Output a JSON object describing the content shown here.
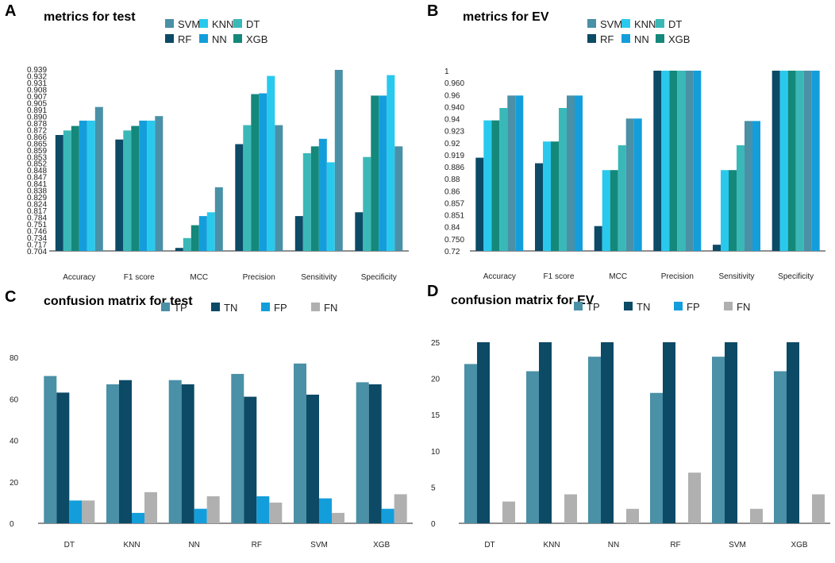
{
  "colors": {
    "SVM": "#4a90a6",
    "RF": "#0c4a66",
    "KNN": "#29c9ee",
    "NN": "#139edb",
    "DT": "#3ab8b8",
    "XGB": "#14887a",
    "TP": "#4a90a6",
    "TN": "#0c4a66",
    "FP": "#139edb",
    "FN": "#b0b0b0"
  },
  "chart_data": [
    {
      "type": "bar",
      "panel": "A",
      "title": "metrics for test",
      "categories": [
        "Accuracy",
        "F1 score",
        "MCC",
        "Precision",
        "Sensitivity",
        "Specificity"
      ],
      "legend": [
        "SVM",
        "KNN",
        "DT",
        "RF",
        "NN",
        "XGB"
      ],
      "ytick_labels": [
        "0.939",
        "0.932",
        "0.931",
        "0.908",
        "0.907",
        "0.905",
        "0.891",
        "0.890",
        "0.878",
        "0.872",
        "0.866",
        "0.865",
        "0.859",
        "0.853",
        "0.852",
        "0.848",
        "0.847",
        "0.841",
        "0.838",
        "0.829",
        "0.824",
        "0.817",
        "0.784",
        "0.751",
        "0.746",
        "0.734",
        "0.717",
        "0.704"
      ],
      "series": [
        {
          "name": "RF",
          "values": [
            0.853,
            0.847,
            0.704,
            0.841,
            0.746,
            0.751
          ]
        },
        {
          "name": "DT",
          "values": [
            0.859,
            0.859,
            0.717,
            0.866,
            0.829,
            0.824
          ]
        },
        {
          "name": "XGB",
          "values": [
            0.865,
            0.865,
            0.734,
            0.907,
            0.838,
            0.905
          ]
        },
        {
          "name": "NN",
          "values": [
            0.872,
            0.872,
            0.746,
            0.908,
            0.848,
            0.905
          ]
        },
        {
          "name": "KNN",
          "values": [
            0.872,
            0.872,
            0.751,
            0.931,
            0.817,
            0.932
          ]
        },
        {
          "name": "SVM",
          "values": [
            0.89,
            0.878,
            0.784,
            0.866,
            0.939,
            0.838
          ]
        }
      ],
      "ylim": [
        0.7,
        0.94
      ]
    },
    {
      "type": "bar",
      "panel": "B",
      "title": "metrics for EV",
      "categories": [
        "Accuracy",
        "F1 score",
        "MCC",
        "Precision",
        "Sensitivity",
        "Specificity"
      ],
      "legend": [
        "SVM",
        "KNN",
        "DT",
        "RF",
        "NN",
        "XGB"
      ],
      "ytick_labels": [
        "1",
        "0.960",
        "0.96",
        "0.940",
        "0.94",
        "0.923",
        "0.92",
        "0.919",
        "0.886",
        "0.88",
        "0.86",
        "0.857",
        "0.851",
        "0.84",
        "0.750",
        "0.72"
      ],
      "series": [
        {
          "name": "RF",
          "values": [
            0.86,
            0.851,
            0.75,
            1,
            0.72,
            1
          ]
        },
        {
          "name": "KNN",
          "values": [
            0.92,
            0.886,
            0.84,
            1,
            0.84,
            1
          ]
        },
        {
          "name": "XGB",
          "values": [
            0.92,
            0.886,
            0.84,
            1,
            0.84,
            1
          ]
        },
        {
          "name": "DT",
          "values": [
            0.94,
            0.94,
            0.88,
            1,
            0.88,
            1
          ]
        },
        {
          "name": "SVM",
          "values": [
            0.96,
            0.96,
            0.923,
            1,
            0.919,
            1
          ]
        },
        {
          "name": "NN",
          "values": [
            0.96,
            0.96,
            0.923,
            1,
            0.919,
            1
          ]
        }
      ],
      "ylim": [
        0.71,
        1.0
      ]
    },
    {
      "type": "bar",
      "panel": "C",
      "title": "confusion matrix for test",
      "categories": [
        "DT",
        "KNN",
        "NN",
        "RF",
        "SVM",
        "XGB"
      ],
      "legend": [
        "TP",
        "TN",
        "FP",
        "FN"
      ],
      "yticks": [
        0,
        20,
        40,
        60,
        80
      ],
      "series": [
        {
          "name": "TP",
          "values": [
            71,
            67,
            69,
            72,
            77,
            68
          ]
        },
        {
          "name": "TN",
          "values": [
            63,
            69,
            67,
            61,
            62,
            67
          ]
        },
        {
          "name": "FP",
          "values": [
            11,
            5,
            7,
            13,
            12,
            7
          ]
        },
        {
          "name": "FN",
          "values": [
            11,
            15,
            13,
            10,
            5,
            14
          ]
        }
      ],
      "ylim": [
        0,
        80
      ]
    },
    {
      "type": "bar",
      "panel": "D",
      "title": "confusion matrix for EV",
      "categories": [
        "DT",
        "KNN",
        "NN",
        "RF",
        "SVM",
        "XGB"
      ],
      "legend": [
        "TP",
        "TN",
        "FP",
        "FN"
      ],
      "yticks": [
        0,
        5,
        10,
        15,
        20,
        25
      ],
      "series": [
        {
          "name": "TP",
          "values": [
            22,
            21,
            23,
            18,
            23,
            21
          ]
        },
        {
          "name": "TN",
          "values": [
            25,
            25,
            25,
            25,
            25,
            25
          ]
        },
        {
          "name": "FP",
          "values": [
            0,
            0,
            0,
            0,
            0,
            0
          ]
        },
        {
          "name": "FN",
          "values": [
            3,
            4,
            2,
            7,
            2,
            4
          ]
        }
      ],
      "ylim": [
        0,
        25
      ]
    }
  ]
}
